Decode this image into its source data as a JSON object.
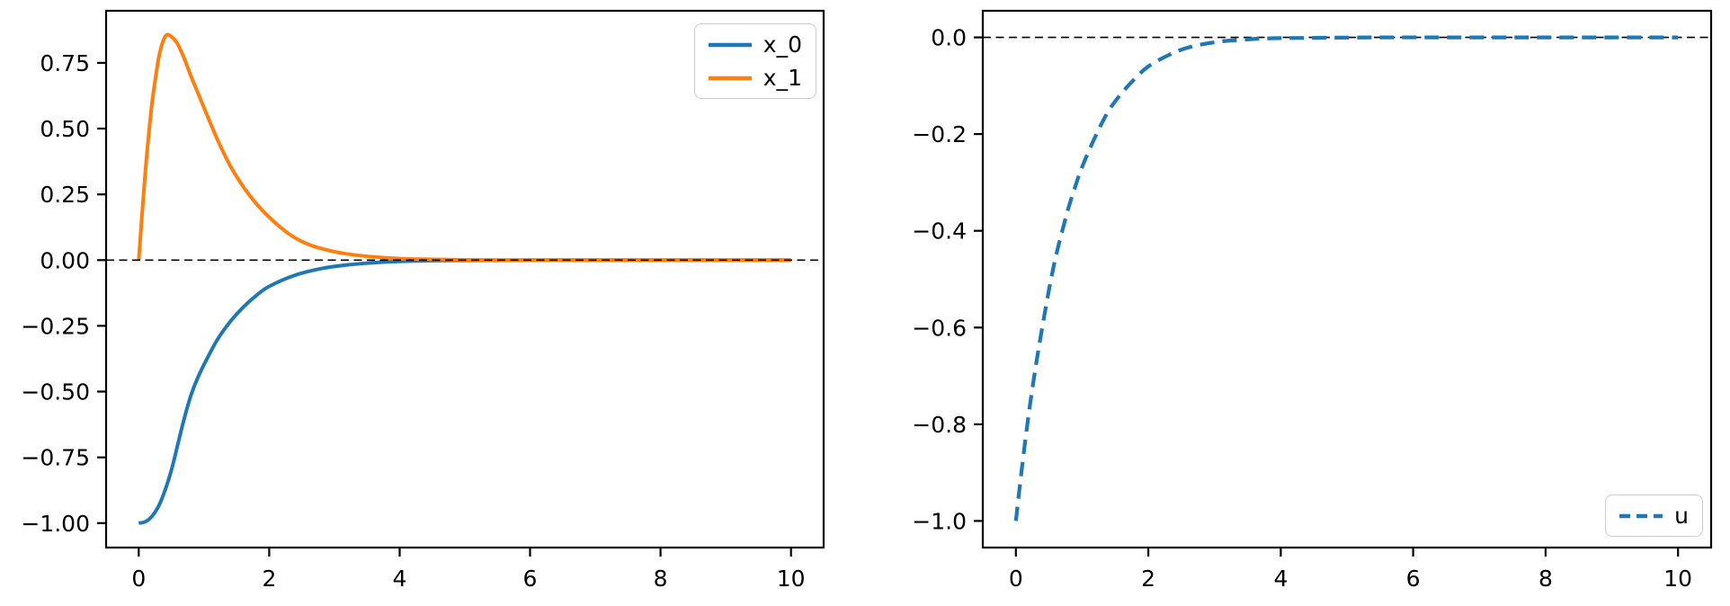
{
  "figure": {
    "background": "#ffffff",
    "frame_color": "#000000",
    "zero_line_color": "#000000"
  },
  "chart_data": [
    {
      "type": "line",
      "name": "states-plot",
      "title": "",
      "xlabel": "",
      "ylabel": "",
      "xlim": [
        -0.5,
        10.5
      ],
      "ylim": [
        -1.093,
        0.948
      ],
      "grid": false,
      "zero_line": true,
      "zero_line_on_top": true,
      "xticks": {
        "values": [
          0,
          2,
          4,
          6,
          8,
          10
        ],
        "labels": [
          "0",
          "2",
          "4",
          "6",
          "8",
          "10"
        ]
      },
      "yticks": {
        "values": [
          0.75,
          0.5,
          0.25,
          0,
          -0.25,
          -0.5,
          -0.75,
          -1.0
        ],
        "labels": [
          "0.75",
          "0.50",
          "0.25",
          "0.00",
          "−0.25",
          "−0.50",
          "−0.75",
          "−1.00"
        ]
      },
      "legend": {
        "position": "top-right"
      },
      "series": [
        {
          "name": "x_0",
          "color": "#1f77b4",
          "dashed": false,
          "width": 4,
          "x": [
            0,
            0.1,
            0.2,
            0.3,
            0.4,
            0.5,
            0.6,
            0.7,
            0.8,
            0.9,
            1.0,
            1.2,
            1.4,
            1.6,
            1.8,
            2.0,
            2.4,
            2.8,
            3.2,
            3.6,
            4.0,
            4.5,
            5.0,
            6.0,
            7.0,
            8.0,
            9.0,
            10.0
          ],
          "y": [
            -1.0,
            -0.995,
            -0.975,
            -0.938,
            -0.878,
            -0.8,
            -0.7,
            -0.6,
            -0.515,
            -0.45,
            -0.398,
            -0.305,
            -0.235,
            -0.18,
            -0.135,
            -0.1,
            -0.057,
            -0.032,
            -0.018,
            -0.01,
            -0.005,
            -0.002,
            -0.001,
            0,
            0,
            0,
            0,
            0
          ]
        },
        {
          "name": "x_1",
          "color": "#ff7f0e",
          "dashed": false,
          "width": 4,
          "x": [
            0,
            0.05,
            0.1,
            0.15,
            0.2,
            0.25,
            0.3,
            0.35,
            0.42,
            0.5,
            0.6,
            0.7,
            0.8,
            0.9,
            1.0,
            1.2,
            1.4,
            1.6,
            1.8,
            2.0,
            2.3,
            2.6,
            3.0,
            3.4,
            3.8,
            4.2,
            5.0,
            6.0,
            7.0,
            8.0,
            9.0,
            10.0
          ],
          "y": [
            0,
            0.17,
            0.33,
            0.47,
            0.59,
            0.68,
            0.76,
            0.815,
            0.855,
            0.85,
            0.82,
            0.765,
            0.7,
            0.64,
            0.58,
            0.462,
            0.36,
            0.28,
            0.215,
            0.163,
            0.1,
            0.06,
            0.032,
            0.017,
            0.009,
            0.004,
            0.001,
            0,
            0,
            0,
            0,
            0
          ]
        }
      ]
    },
    {
      "type": "line",
      "name": "control-plot",
      "title": "",
      "xlabel": "",
      "ylabel": "",
      "xlim": [
        -0.5,
        10.5
      ],
      "ylim": [
        -1.055,
        0.055
      ],
      "grid": false,
      "zero_line": true,
      "zero_line_on_top": false,
      "xticks": {
        "values": [
          0,
          2,
          4,
          6,
          8,
          10
        ],
        "labels": [
          "0",
          "2",
          "4",
          "6",
          "8",
          "10"
        ]
      },
      "yticks": {
        "values": [
          0,
          -0.2,
          -0.4,
          -0.6,
          -0.8,
          -1.0
        ],
        "labels": [
          "0.0",
          "−0.2",
          "−0.4",
          "−0.6",
          "−0.8",
          "−1.0"
        ]
      },
      "legend": {
        "position": "bottom-right"
      },
      "series": [
        {
          "name": "u",
          "color": "#1f77b4",
          "dashed": true,
          "width": 4.2,
          "x": [
            0,
            0.1,
            0.2,
            0.3,
            0.4,
            0.5,
            0.6,
            0.7,
            0.8,
            0.9,
            1.0,
            1.2,
            1.4,
            1.6,
            1.8,
            2.0,
            2.3,
            2.6,
            3.0,
            3.4,
            3.8,
            4.5,
            5.5,
            6.5,
            8.0,
            10.0
          ],
          "y": [
            -1.0,
            -0.88,
            -0.773,
            -0.68,
            -0.598,
            -0.522,
            -0.455,
            -0.4,
            -0.35,
            -0.307,
            -0.268,
            -0.205,
            -0.152,
            -0.115,
            -0.085,
            -0.06,
            -0.037,
            -0.021,
            -0.01,
            -0.005,
            -0.002,
            -0.001,
            0,
            0,
            0,
            0
          ]
        }
      ]
    }
  ]
}
